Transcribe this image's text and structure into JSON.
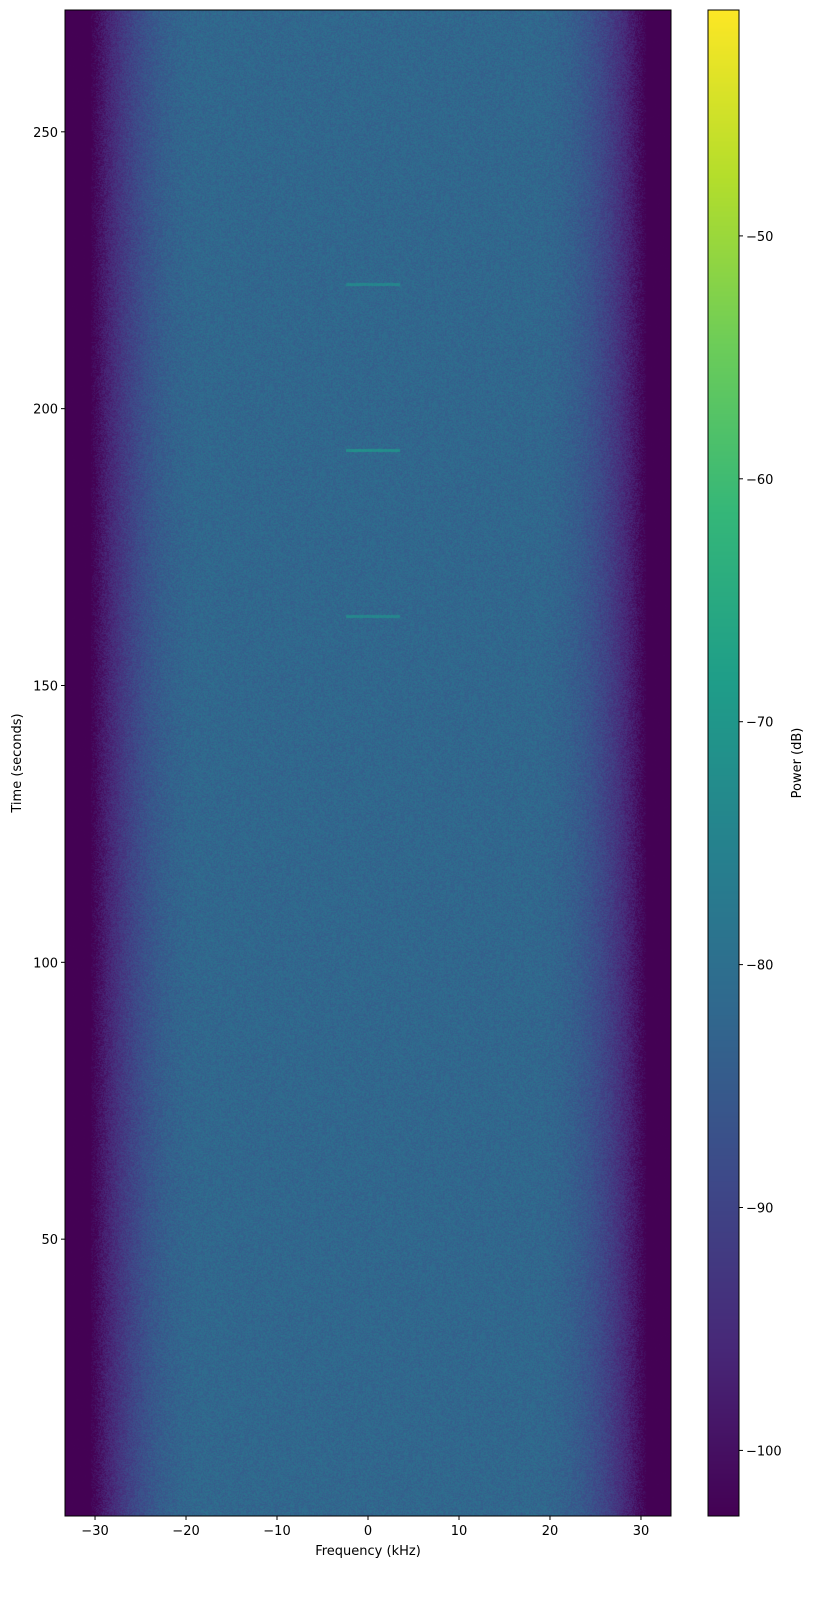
{
  "chart_data": {
    "type": "heatmap",
    "title": "",
    "xlabel": "Frequency (kHz)",
    "ylabel": "Time (seconds)",
    "colorbar_label": "Power (dB)",
    "colormap": "viridis",
    "xlim": [
      -33.3,
      33.3
    ],
    "ylim": [
      0,
      272
    ],
    "clim": [
      -102.7,
      -40.7
    ],
    "xticks": [
      -30,
      -20,
      -10,
      0,
      10,
      20,
      30
    ],
    "xtick_labels": [
      "−30",
      "−20",
      "−10",
      "0",
      "10",
      "20",
      "30"
    ],
    "yticks": [
      50,
      100,
      150,
      200,
      250
    ],
    "ytick_labels": [
      "50",
      "100",
      "150",
      "200",
      "250"
    ],
    "cticks": [
      -100,
      -90,
      -80,
      -70,
      -60,
      -50
    ],
    "ctick_labels": [
      "−100",
      "−90",
      "−80",
      "−70",
      "−60",
      "−50"
    ],
    "noise_floor_db": -82,
    "band_edge_khz": 28,
    "out_of_band_db": -103,
    "signals": [
      {
        "time_s": 222.5,
        "freq_start_khz": -2.5,
        "freq_end_khz": 3.5,
        "power_db": -74
      },
      {
        "time_s": 192.5,
        "freq_start_khz": -2.5,
        "freq_end_khz": 3.5,
        "power_db": -72
      },
      {
        "time_s": 162.5,
        "freq_start_khz": -2.5,
        "freq_end_khz": 3.5,
        "power_db": -74
      }
    ],
    "grid": false
  }
}
